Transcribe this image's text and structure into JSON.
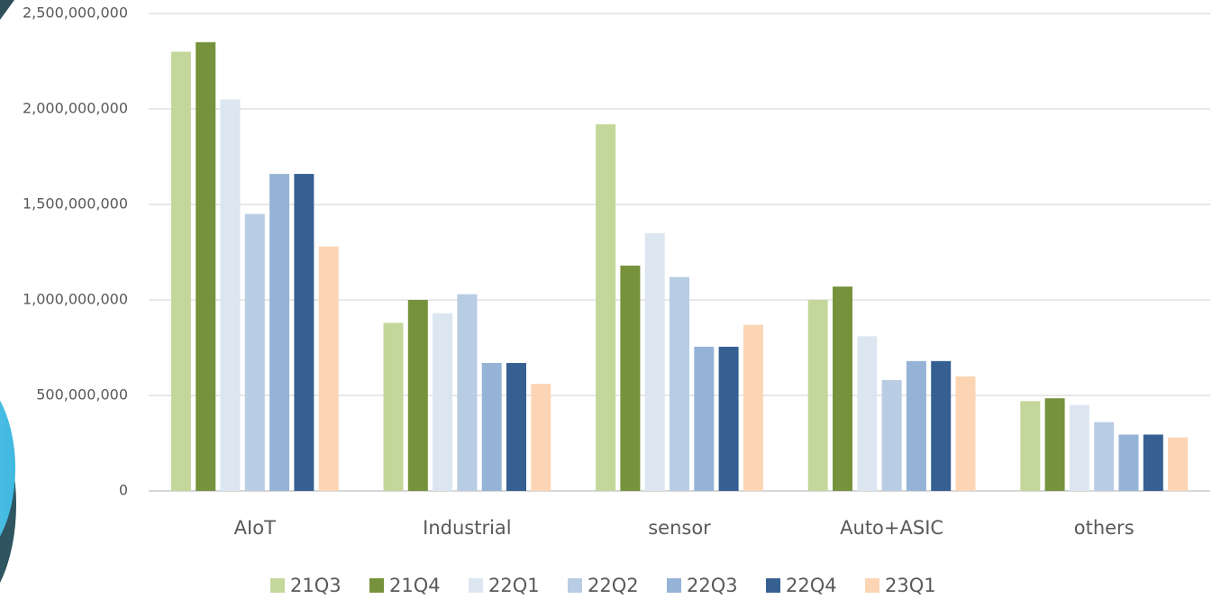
{
  "chart_data": {
    "type": "bar",
    "categories": [
      "AIoT",
      "Industrial",
      "sensor",
      "Auto+ASIC",
      "others"
    ],
    "series": [
      {
        "name": "21Q3",
        "color": "#c4d79b",
        "values": [
          2300000000,
          880000000,
          1920000000,
          1000000000,
          470000000
        ]
      },
      {
        "name": "21Q4",
        "color": "#76923c",
        "values": [
          2350000000,
          1000000000,
          1180000000,
          1070000000,
          485000000
        ]
      },
      {
        "name": "22Q1",
        "color": "#dce6f1",
        "values": [
          2050000000,
          930000000,
          1350000000,
          810000000,
          450000000
        ]
      },
      {
        "name": "22Q2",
        "color": "#b8cce4",
        "values": [
          1450000000,
          1030000000,
          1120000000,
          580000000,
          360000000
        ]
      },
      {
        "name": "22Q3",
        "color": "#95b3d7",
        "values": [
          1660000000,
          670000000,
          755000000,
          680000000,
          295000000
        ]
      },
      {
        "name": "22Q4",
        "color": "#366092",
        "values": [
          1660000000,
          670000000,
          755000000,
          680000000,
          295000000
        ]
      },
      {
        "name": "23Q1",
        "color": "#fcd5b4",
        "values": [
          1280000000,
          560000000,
          870000000,
          600000000,
          280000000
        ]
      }
    ],
    "ylim": [
      0,
      2500000000
    ],
    "yticks": [
      0,
      {
        "value": 500000000,
        "label": "500,000,000"
      },
      {
        "value": 1000000000,
        "label": "1,000,000,000"
      },
      {
        "value": 1500000000,
        "label": "1,500,000,000"
      },
      {
        "value": 2000000000,
        "label": "2,000,000,000"
      },
      {
        "value": 2500000000,
        "label": "2,500,000,000"
      }
    ],
    "grid": true,
    "legend": "bottom"
  }
}
